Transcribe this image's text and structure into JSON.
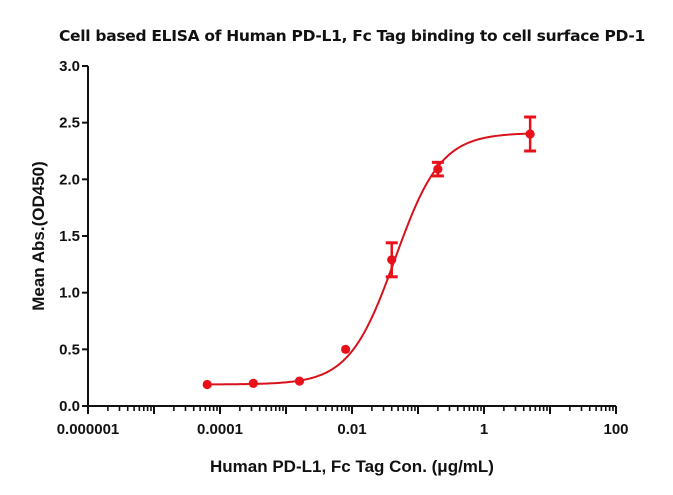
{
  "chart_data": {
    "type": "scatter",
    "title": "Cell based ELISA of Human PD-L1, Fc Tag binding to cell surface PD-1",
    "xlabel": "Human PD-L1, Fc Tag Con. (μg/mL)",
    "ylabel": "Mean Abs.(OD450)",
    "xscale": "log",
    "xlim": [
      1e-06,
      100
    ],
    "ylim": [
      0,
      3.0
    ],
    "xticks": [
      {
        "value": 1e-06,
        "label": "0.000001"
      },
      {
        "value": 0.0001,
        "label": "0.0001"
      },
      {
        "value": 0.01,
        "label": "0.01"
      },
      {
        "value": 1,
        "label": "1"
      },
      {
        "value": 100,
        "label": "100"
      }
    ],
    "yticks": [
      {
        "value": 0.0,
        "label": "0.0"
      },
      {
        "value": 0.5,
        "label": "0.5"
      },
      {
        "value": 1.0,
        "label": "1.0"
      },
      {
        "value": 1.5,
        "label": "1.5"
      },
      {
        "value": 2.0,
        "label": "2.0"
      },
      {
        "value": 2.5,
        "label": "2.5"
      },
      {
        "value": 3.0,
        "label": "3.0"
      }
    ],
    "grid": false,
    "color": "#e8111b",
    "series": [
      {
        "name": "Human PD-L1, Fc Tag",
        "x": [
          6.4e-05,
          0.00032,
          0.0016,
          0.008,
          0.04,
          0.2,
          5
        ],
        "y": [
          0.19,
          0.2,
          0.22,
          0.5,
          1.29,
          2.09,
          2.4
        ],
        "error": [
          0.01,
          0.01,
          0.01,
          0.01,
          0.15,
          0.06,
          0.15
        ]
      }
    ],
    "fit": {
      "model": "4PL",
      "bottom": 0.19,
      "top": 2.41,
      "ec50": 0.045,
      "hill": 1.25
    }
  }
}
